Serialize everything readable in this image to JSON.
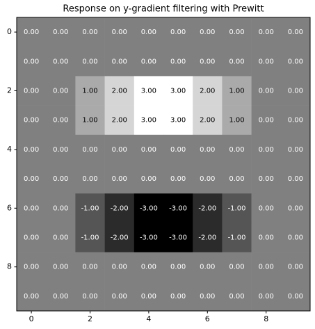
{
  "chart_data": {
    "type": "heatmap",
    "title": "Response on y-gradient filtering with Prewitt",
    "colormap": "gray",
    "values": [
      [
        0,
        0,
        0,
        0,
        0,
        0,
        0,
        0,
        0,
        0
      ],
      [
        0,
        0,
        0,
        0,
        0,
        0,
        0,
        0,
        0,
        0
      ],
      [
        0,
        0,
        1,
        2,
        3,
        3,
        2,
        1,
        0,
        0
      ],
      [
        0,
        0,
        1,
        2,
        3,
        3,
        2,
        1,
        0,
        0
      ],
      [
        0,
        0,
        0,
        0,
        0,
        0,
        0,
        0,
        0,
        0
      ],
      [
        0,
        0,
        0,
        0,
        0,
        0,
        0,
        0,
        0,
        0
      ],
      [
        0,
        0,
        -1,
        -2,
        -3,
        -3,
        -2,
        -1,
        0,
        0
      ],
      [
        0,
        0,
        -1,
        -2,
        -3,
        -3,
        -2,
        -1,
        0,
        0
      ],
      [
        0,
        0,
        0,
        0,
        0,
        0,
        0,
        0,
        0,
        0
      ],
      [
        0,
        0,
        0,
        0,
        0,
        0,
        0,
        0,
        0,
        0
      ]
    ],
    "value_labels": [
      [
        "0.00",
        "0.00",
        "0.00",
        "0.00",
        "0.00",
        "0.00",
        "0.00",
        "0.00",
        "0.00",
        "0.00"
      ],
      [
        "0.00",
        "0.00",
        "0.00",
        "0.00",
        "0.00",
        "0.00",
        "0.00",
        "0.00",
        "0.00",
        "0.00"
      ],
      [
        "0.00",
        "0.00",
        "1.00",
        "2.00",
        "3.00",
        "3.00",
        "2.00",
        "1.00",
        "0.00",
        "0.00"
      ],
      [
        "0.00",
        "0.00",
        "1.00",
        "2.00",
        "3.00",
        "3.00",
        "2.00",
        "1.00",
        "0.00",
        "0.00"
      ],
      [
        "0.00",
        "0.00",
        "0.00",
        "0.00",
        "0.00",
        "0.00",
        "0.00",
        "0.00",
        "0.00",
        "0.00"
      ],
      [
        "0.00",
        "0.00",
        "0.00",
        "0.00",
        "0.00",
        "0.00",
        "0.00",
        "0.00",
        "0.00",
        "0.00"
      ],
      [
        "0.00",
        "0.00",
        "-1.00",
        "-2.00",
        "-3.00",
        "-3.00",
        "-2.00",
        "-1.00",
        "0.00",
        "0.00"
      ],
      [
        "0.00",
        "0.00",
        "-1.00",
        "-2.00",
        "-3.00",
        "-3.00",
        "-2.00",
        "-1.00",
        "0.00",
        "0.00"
      ],
      [
        "0.00",
        "0.00",
        "0.00",
        "0.00",
        "0.00",
        "0.00",
        "0.00",
        "0.00",
        "0.00",
        "0.00"
      ],
      [
        "0.00",
        "0.00",
        "0.00",
        "0.00",
        "0.00",
        "0.00",
        "0.00",
        "0.00",
        "0.00",
        "0.00"
      ]
    ],
    "xlim": [
      -0.5,
      9.5
    ],
    "ylim": [
      9.5,
      -0.5
    ],
    "xticks": [
      0,
      2,
      4,
      6,
      8
    ],
    "yticks": [
      0,
      2,
      4,
      6,
      8
    ]
  }
}
